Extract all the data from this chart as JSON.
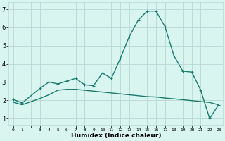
{
  "xlabel": "Humidex (Indice chaleur)",
  "x_main": [
    0,
    1,
    3,
    4,
    5,
    6,
    7,
    8,
    9,
    10,
    11,
    12,
    13,
    14,
    15,
    16,
    17,
    18,
    19,
    20,
    21,
    22,
    23
  ],
  "y_main": [
    2.05,
    1.85,
    2.65,
    3.0,
    2.9,
    3.05,
    3.2,
    2.85,
    2.8,
    3.5,
    3.2,
    4.3,
    5.5,
    6.4,
    6.9,
    6.9,
    6.05,
    4.45,
    3.6,
    3.55,
    2.55,
    1.0,
    1.75
  ],
  "x_flat": [
    0,
    1,
    3,
    4,
    5,
    6,
    7,
    8,
    9,
    10,
    11,
    12,
    13,
    14,
    15,
    16,
    17,
    18,
    19,
    20,
    21,
    22,
    23
  ],
  "y_flat": [
    1.9,
    1.75,
    2.1,
    2.3,
    2.55,
    2.6,
    2.6,
    2.55,
    2.5,
    2.45,
    2.4,
    2.35,
    2.3,
    2.25,
    2.2,
    2.18,
    2.12,
    2.08,
    2.03,
    1.98,
    1.93,
    1.88,
    1.75
  ],
  "line_color": "#1a7a6e",
  "bg_color": "#d9f5f0",
  "grid_color": "#b8d8d4",
  "ylim": [
    0.6,
    7.4
  ],
  "xlim": [
    -0.5,
    23.5
  ],
  "yticks": [
    1,
    2,
    3,
    4,
    5,
    6,
    7
  ],
  "marker_size": 2.5,
  "line_width": 1.0
}
